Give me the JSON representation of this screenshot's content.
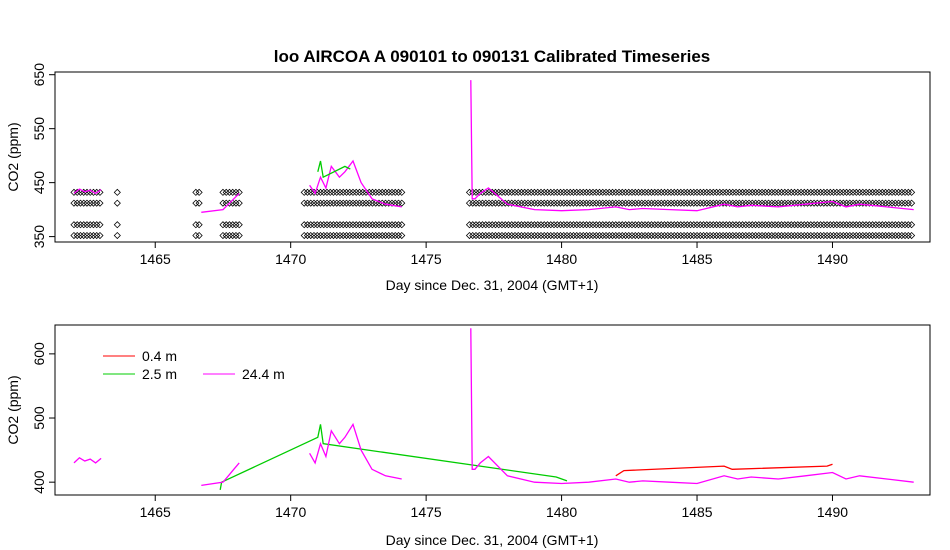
{
  "chart_data": [
    {
      "type": "line",
      "title": "loo   AIRCOA  A    090101  to  090131   Calibrated Timeseries",
      "xlabel": "Day since Dec. 31, 2004 (GMT+1)",
      "ylabel": "CO2 (ppm)",
      "xlim": [
        1461.3,
        1493.6
      ],
      "ylim": [
        340,
        655
      ],
      "xticks": [
        1465,
        1470,
        1475,
        1480,
        1485,
        1490
      ],
      "yticks": [
        350,
        450,
        550,
        650
      ],
      "grid": false,
      "series": [
        {
          "name": "24.4 m",
          "color": "#ff00ff",
          "x": [
            1462.0,
            1462.2,
            1462.4,
            1462.6,
            1462.8,
            1463.0,
            1463.6,
            1463.7,
            1466.5,
            1466.7,
            1467.5,
            1467.7,
            1467.9,
            1468.1,
            1470.5,
            1470.7,
            1470.9,
            1471.1,
            1471.3,
            1471.5,
            1471.8,
            1472.0,
            1472.3,
            1472.6,
            1473.0,
            1473.5,
            1474.1,
            1476.6,
            1476.65,
            1476.7,
            1476.8,
            1477.0,
            1477.3,
            1478.0,
            1479.0,
            1480.0,
            1481.0,
            1482.0,
            1482.5,
            1483.0,
            1484.0,
            1485.0,
            1486.0,
            1486.5,
            1487.0,
            1488.0,
            1489.0,
            1490.0,
            1490.5,
            1491.0,
            1492.0,
            1493.0
          ],
          "y": [
            430,
            438,
            433,
            436,
            430,
            437,
            null,
            405,
            null,
            395,
            400,
            410,
            420,
            430,
            null,
            445,
            430,
            460,
            440,
            480,
            460,
            470,
            490,
            450,
            420,
            410,
            405,
            null,
            640,
            420,
            420,
            430,
            440,
            410,
            400,
            398,
            400,
            405,
            400,
            402,
            400,
            398,
            410,
            405,
            408,
            405,
            410,
            415,
            405,
            410,
            405,
            400
          ]
        },
        {
          "name": "2.5 m",
          "color": "#00cc00",
          "x": [
            1471.0,
            1471.1,
            1471.2,
            1472.0,
            1472.2
          ],
          "y": [
            470,
            490,
            460,
            480,
            475
          ]
        }
      ],
      "markers": {
        "symbol": "diamond",
        "levels": [
          352,
          372,
          412,
          432
        ]
      }
    },
    {
      "type": "line",
      "xlabel": "Day since Dec. 31, 2004 (GMT+1)",
      "ylabel": "CO2 (ppm)",
      "xlim": [
        1461.3,
        1493.6
      ],
      "ylim": [
        380,
        645
      ],
      "xticks": [
        1465,
        1470,
        1475,
        1480,
        1485,
        1490
      ],
      "yticks": [
        400,
        500,
        600
      ],
      "grid": false,
      "legend": {
        "position": "top-left",
        "entries": [
          {
            "label": "0.4 m",
            "color": "#ff0000"
          },
          {
            "label": "2.5 m",
            "color": "#00cc00"
          },
          {
            "label": "24.4 m",
            "color": "#ff00ff"
          }
        ]
      },
      "series": [
        {
          "name": "0.4 m",
          "color": "#ff0000",
          "x": [
            1482.0,
            1482.3,
            1486.0,
            1486.3,
            1489.8,
            1490.0
          ],
          "y": [
            410,
            418,
            425,
            420,
            425,
            428
          ]
        },
        {
          "name": "2.5 m",
          "color": "#00cc00",
          "x": [
            1467.4,
            1467.45,
            1471.0,
            1471.1,
            1471.2,
            1479.8,
            1480.2
          ],
          "y": [
            388,
            400,
            470,
            490,
            460,
            408,
            402
          ]
        },
        {
          "name": "24.4 m",
          "color": "#ff00ff",
          "x": [
            1462.0,
            1462.2,
            1462.4,
            1462.6,
            1462.8,
            1463.0,
            1463.6,
            1463.7,
            1466.5,
            1466.7,
            1467.5,
            1467.7,
            1467.9,
            1468.1,
            1470.5,
            1470.7,
            1470.9,
            1471.1,
            1471.3,
            1471.5,
            1471.8,
            1472.0,
            1472.3,
            1472.6,
            1473.0,
            1473.5,
            1474.1,
            1476.6,
            1476.65,
            1476.7,
            1476.8,
            1477.0,
            1477.3,
            1478.0,
            1479.0,
            1480.0,
            1481.0,
            1482.0,
            1482.5,
            1483.0,
            1484.0,
            1485.0,
            1486.0,
            1486.5,
            1487.0,
            1488.0,
            1489.0,
            1490.0,
            1490.5,
            1491.0,
            1492.0,
            1493.0
          ],
          "y": [
            430,
            438,
            433,
            436,
            430,
            437,
            null,
            405,
            null,
            395,
            400,
            410,
            420,
            430,
            null,
            445,
            430,
            460,
            440,
            480,
            460,
            470,
            490,
            450,
            420,
            410,
            405,
            null,
            640,
            420,
            420,
            430,
            440,
            410,
            400,
            398,
            400,
            405,
            400,
            402,
            400,
            398,
            410,
            405,
            408,
            405,
            410,
            415,
            405,
            410,
            405,
            400
          ]
        }
      ]
    }
  ]
}
